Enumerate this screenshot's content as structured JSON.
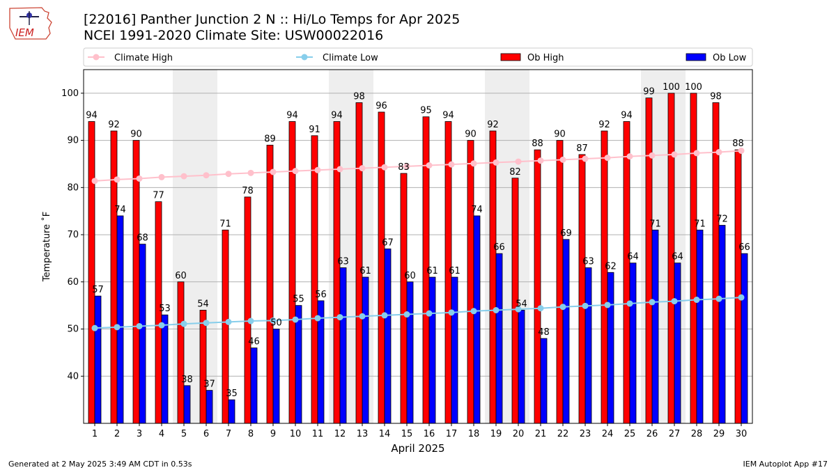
{
  "header": {
    "title_line1": "[22016] Panther Junction 2 N :: Hi/Lo Temps for Apr 2025",
    "title_line2": "NCEI 1991-2020 Climate Site: USW00022016",
    "logo_text": "IEM"
  },
  "footer": {
    "generated": "Generated at 2 May 2025 3:49 AM CDT in 0.53s",
    "app": "IEM Autoplot App #17"
  },
  "colors": {
    "ob_high": "#ff0000",
    "ob_low": "#0000ff",
    "climate_high": "#ffc0cb",
    "climate_low": "#87ceeb",
    "weekend_shade": "#eeeeee",
    "grid": "#b0b0b0"
  },
  "chart_data": {
    "type": "bar",
    "xlabel": "April 2025",
    "ylabel": "Temperature ˚F",
    "ylim": [
      30,
      105
    ],
    "yticks": [
      40,
      50,
      60,
      70,
      80,
      90,
      100
    ],
    "grid": "horizontal",
    "legend_position": "top",
    "categories": [
      "1",
      "2",
      "3",
      "4",
      "5",
      "6",
      "7",
      "8",
      "9",
      "10",
      "11",
      "12",
      "13",
      "14",
      "15",
      "16",
      "17",
      "18",
      "19",
      "20",
      "21",
      "22",
      "23",
      "24",
      "25",
      "26",
      "27",
      "28",
      "29",
      "30"
    ],
    "shaded_days": [
      5,
      6,
      12,
      13,
      19,
      20,
      26,
      27
    ],
    "series": [
      {
        "name": "Ob High",
        "kind": "bar",
        "color": "#ff0000",
        "values": [
          94,
          92,
          90,
          77,
          60,
          54,
          71,
          78,
          89,
          94,
          91,
          94,
          98,
          96,
          83,
          95,
          94,
          90,
          92,
          82,
          88,
          90,
          87,
          92,
          94,
          99,
          100,
          100,
          98,
          88
        ]
      },
      {
        "name": "Ob Low",
        "kind": "bar",
        "color": "#0000ff",
        "values": [
          57,
          74,
          68,
          53,
          38,
          37,
          35,
          46,
          50,
          55,
          56,
          63,
          61,
          67,
          60,
          61,
          61,
          74,
          66,
          54,
          48,
          69,
          63,
          62,
          64,
          71,
          64,
          71,
          72,
          66
        ]
      },
      {
        "name": "Climate High",
        "kind": "line",
        "color": "#ffc0cb",
        "values": [
          81.4,
          81.7,
          81.9,
          82.2,
          82.4,
          82.6,
          82.9,
          83.1,
          83.3,
          83.5,
          83.7,
          83.9,
          84.1,
          84.3,
          84.5,
          84.7,
          84.9,
          85.1,
          85.3,
          85.5,
          85.7,
          85.9,
          86.1,
          86.3,
          86.6,
          86.8,
          87.0,
          87.3,
          87.5,
          87.8
        ]
      },
      {
        "name": "Climate Low",
        "kind": "line",
        "color": "#87ceeb",
        "values": [
          50.2,
          50.4,
          50.6,
          50.8,
          51.1,
          51.3,
          51.5,
          51.7,
          51.8,
          52.0,
          52.3,
          52.5,
          52.7,
          52.9,
          53.1,
          53.3,
          53.5,
          53.8,
          54.0,
          54.2,
          54.4,
          54.7,
          54.9,
          55.1,
          55.4,
          55.7,
          55.9,
          56.2,
          56.4,
          56.7
        ]
      }
    ],
    "ob_high_labels": [
      "94",
      "92",
      "90",
      "77",
      "60",
      "54",
      "71",
      "78",
      "89",
      "94",
      "91",
      "94",
      "98",
      "96",
      "83",
      "95",
      "94",
      "90",
      "92",
      "82",
      "88",
      "90",
      "87",
      "92",
      "94",
      "99",
      "100",
      "100",
      "98",
      "88"
    ],
    "ob_low_labels": [
      "57",
      "74",
      "68",
      "53",
      "38",
      "37",
      "35",
      "46",
      "50",
      "55",
      "56",
      "63",
      "61",
      "67",
      "60",
      "61",
      "61",
      "74",
      "66",
      "54",
      "48",
      "69",
      "63",
      "62",
      "64",
      "71",
      "64",
      "71",
      "72",
      "66"
    ],
    "legend": [
      {
        "label": "Climate High",
        "type": "line",
        "color": "#ffc0cb"
      },
      {
        "label": "Climate Low",
        "type": "line",
        "color": "#87ceeb"
      },
      {
        "label": "Ob High",
        "type": "patch",
        "color": "#ff0000"
      },
      {
        "label": "Ob Low",
        "type": "patch",
        "color": "#0000ff"
      }
    ]
  }
}
